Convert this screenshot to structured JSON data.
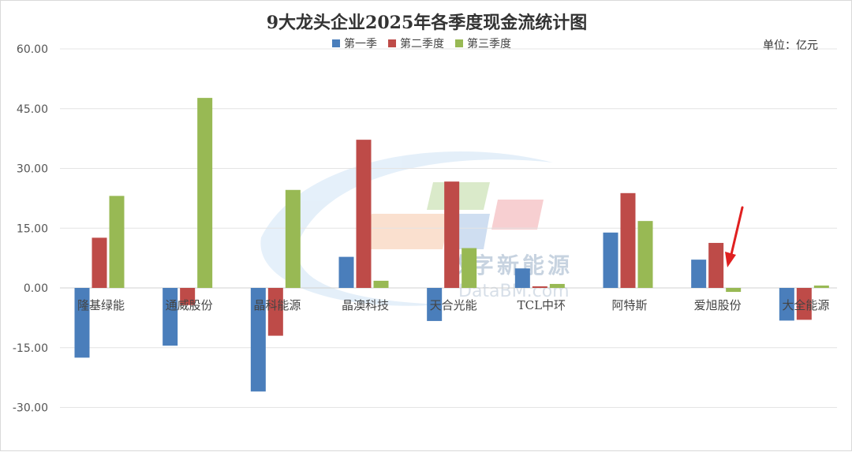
{
  "chart_data": {
    "type": "bar",
    "title": "9大龙头企业2025年各季度现金流统计图",
    "unit_label": "单位：亿元",
    "categories": [
      "隆基绿能",
      "通威股份",
      "晶科能源",
      "晶澳科技",
      "天合光能",
      "TCL中环",
      "阿特斯",
      "爱旭股份",
      "大全能源"
    ],
    "series": [
      {
        "name": "第一季",
        "color": "#4a7ebb",
        "values": [
          -17.5,
          -14.5,
          -26.0,
          7.8,
          -8.3,
          4.9,
          13.9,
          7.1,
          -8.2
        ]
      },
      {
        "name": "第二季度",
        "color": "#be4b48",
        "values": [
          12.6,
          -4.3,
          -12.0,
          37.2,
          26.7,
          0.4,
          23.8,
          11.3,
          -8.0
        ]
      },
      {
        "name": "第三季度",
        "color": "#98b954",
        "values": [
          23.1,
          47.7,
          24.6,
          1.8,
          10.0,
          1.0,
          16.8,
          -1.0,
          0.6
        ]
      }
    ],
    "ylim": [
      -30,
      60
    ],
    "yticks": [
      "60.00",
      "45.00",
      "30.00",
      "15.00",
      "0.00",
      "-15.00",
      "-30.00"
    ],
    "ytick_values": [
      60,
      45,
      30,
      15,
      0,
      -15,
      -30
    ],
    "grid": true,
    "legend_position": "top-center"
  },
  "watermark": {
    "name": "数字新能源",
    "url": "DataBM.com"
  }
}
